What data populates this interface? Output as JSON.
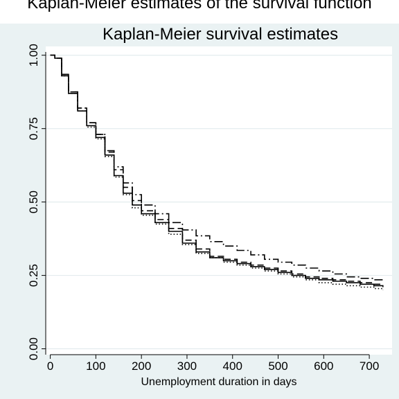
{
  "header": {
    "cropped_caption": "Kaplan-Meier estimates of the survival function"
  },
  "chart_data": {
    "type": "line",
    "title": "Kaplan-Meier survival estimates",
    "xlabel": "Unemployment duration in days",
    "ylabel": "",
    "xlim": [
      -10,
      750
    ],
    "ylim": [
      -0.02,
      1.03
    ],
    "x_ticks": [
      0,
      100,
      200,
      300,
      400,
      500,
      600,
      700
    ],
    "y_ticks": [
      0.0,
      0.25,
      0.5,
      0.75,
      1.0
    ],
    "y_tick_labels": [
      "0.00",
      "0.25",
      "0.50",
      "0.75",
      "1.00"
    ],
    "grid": "horizontal",
    "legend": "none",
    "series": [
      {
        "style": "solid",
        "x": [
          0,
          10,
          25,
          40,
          60,
          80,
          100,
          120,
          140,
          160,
          180,
          200,
          230,
          260,
          290,
          320,
          350,
          380,
          410,
          440,
          470,
          500,
          530,
          560,
          590,
          620,
          650,
          680,
          710,
          730
        ],
        "y": [
          1.0,
          0.99,
          0.93,
          0.87,
          0.81,
          0.76,
          0.72,
          0.66,
          0.59,
          0.53,
          0.49,
          0.46,
          0.43,
          0.4,
          0.36,
          0.33,
          0.31,
          0.3,
          0.29,
          0.28,
          0.27,
          0.26,
          0.25,
          0.24,
          0.235,
          0.23,
          0.225,
          0.22,
          0.215,
          0.21
        ]
      },
      {
        "style": "dashed",
        "x": [
          0,
          10,
          25,
          40,
          60,
          80,
          100,
          120,
          140,
          160,
          180,
          200,
          230,
          260,
          290,
          320,
          350,
          380,
          410,
          440,
          470,
          500,
          530,
          560,
          590,
          620,
          650,
          680,
          710,
          730
        ],
        "y": [
          1.0,
          0.99,
          0.935,
          0.875,
          0.82,
          0.77,
          0.73,
          0.67,
          0.61,
          0.55,
          0.505,
          0.47,
          0.44,
          0.41,
          0.37,
          0.34,
          0.315,
          0.305,
          0.295,
          0.285,
          0.275,
          0.265,
          0.255,
          0.245,
          0.24,
          0.235,
          0.23,
          0.225,
          0.22,
          0.22
        ]
      },
      {
        "style": "dotted",
        "x": [
          0,
          10,
          25,
          40,
          60,
          80,
          100,
          120,
          140,
          160,
          180,
          200,
          230,
          260,
          290,
          320,
          350,
          380,
          410,
          440,
          470,
          500,
          530,
          560,
          590,
          620,
          650,
          680,
          710,
          730
        ],
        "y": [
          1.0,
          0.99,
          0.93,
          0.87,
          0.81,
          0.755,
          0.715,
          0.655,
          0.585,
          0.525,
          0.48,
          0.455,
          0.425,
          0.39,
          0.355,
          0.325,
          0.31,
          0.295,
          0.285,
          0.275,
          0.265,
          0.255,
          0.245,
          0.235,
          0.225,
          0.22,
          0.215,
          0.21,
          0.205,
          0.2
        ]
      },
      {
        "style": "dashdot",
        "x": [
          0,
          10,
          25,
          40,
          60,
          80,
          100,
          120,
          140,
          160,
          180,
          200,
          230,
          260,
          290,
          320,
          350,
          380,
          410,
          440,
          470,
          500,
          530,
          560,
          590,
          620,
          650,
          680,
          710,
          730
        ],
        "y": [
          1.0,
          0.99,
          0.935,
          0.875,
          0.82,
          0.77,
          0.73,
          0.675,
          0.62,
          0.565,
          0.525,
          0.49,
          0.46,
          0.43,
          0.405,
          0.385,
          0.365,
          0.35,
          0.335,
          0.32,
          0.305,
          0.295,
          0.285,
          0.275,
          0.265,
          0.255,
          0.245,
          0.24,
          0.235,
          0.23
        ]
      }
    ]
  }
}
